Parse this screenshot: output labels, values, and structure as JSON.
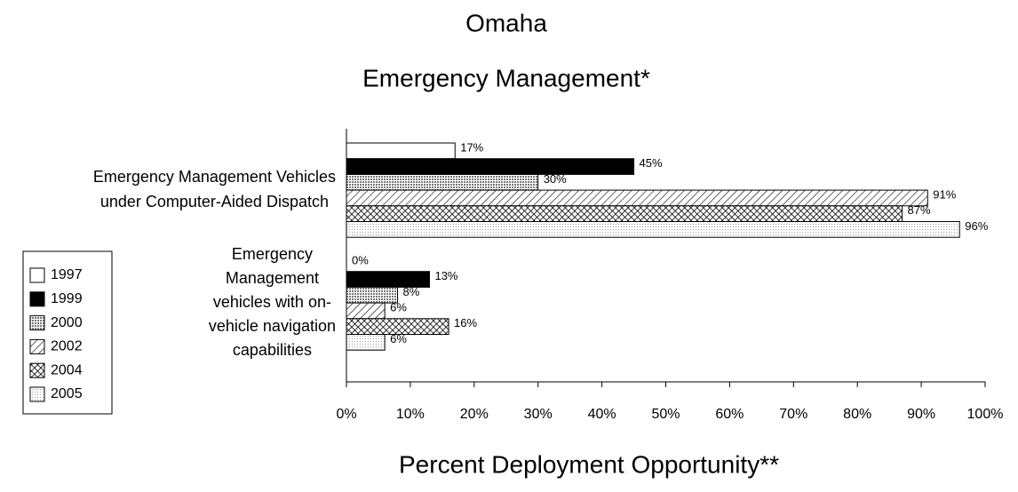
{
  "chart_data": {
    "type": "hbar",
    "title": "Omaha",
    "subtitle": "Emergency Management*",
    "x_label": "Percent Deployment Opportunity**",
    "categories": [
      [
        "Emergency Management Vehicles",
        "under Computer-Aided Dispatch"
      ],
      [
        "Emergency",
        "Management",
        "vehicles with on-",
        "vehicle navigation",
        "capabilities"
      ]
    ],
    "series": [
      {
        "name": "1997",
        "pattern": "white",
        "values": [
          17,
          0
        ],
        "value_labels": [
          "17%",
          "0%"
        ]
      },
      {
        "name": "1999",
        "pattern": "black",
        "values": [
          45,
          13
        ],
        "value_labels": [
          "45%",
          "13%"
        ]
      },
      {
        "name": "2000",
        "pattern": "grid",
        "values": [
          30,
          8
        ],
        "value_labels": [
          "30%",
          "8%"
        ]
      },
      {
        "name": "2002",
        "pattern": "hatch",
        "values": [
          91,
          6
        ],
        "value_labels": [
          "91%",
          "6%"
        ]
      },
      {
        "name": "2004",
        "pattern": "crosshatch",
        "values": [
          87,
          16
        ],
        "value_labels": [
          "87%",
          "16%"
        ]
      },
      {
        "name": "2005",
        "pattern": "dots",
        "values": [
          96,
          6
        ],
        "value_labels": [
          "96%",
          "6%"
        ]
      }
    ],
    "xlim": [
      0,
      100
    ],
    "xticks": [
      {
        "value": 0,
        "label": "0%"
      },
      {
        "value": 10,
        "label": "10%"
      },
      {
        "value": 20,
        "label": "20%"
      },
      {
        "value": 30,
        "label": "30%"
      },
      {
        "value": 40,
        "label": "40%"
      },
      {
        "value": 50,
        "label": "50%"
      },
      {
        "value": 60,
        "label": "60%"
      },
      {
        "value": 70,
        "label": "70%"
      },
      {
        "value": 80,
        "label": "80%"
      },
      {
        "value": 90,
        "label": "90%"
      },
      {
        "value": 100,
        "label": "100%"
      }
    ],
    "legend": "left"
  }
}
